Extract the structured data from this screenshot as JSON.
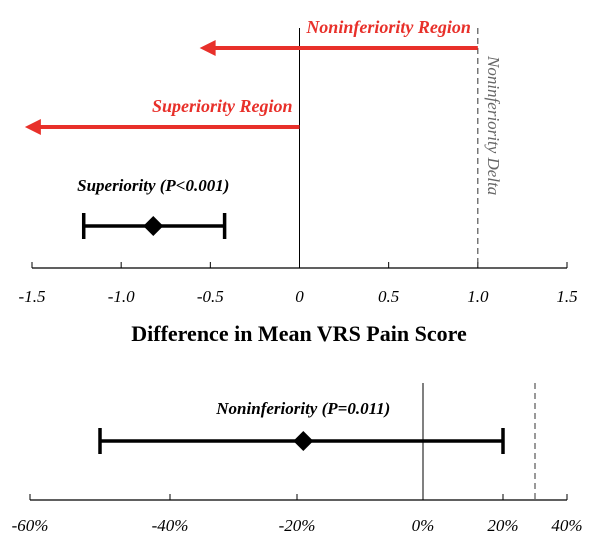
{
  "chart_data": [
    {
      "type": "errorbar",
      "xlabel": "Difference in Mean VRS Pain Score",
      "xlim": [
        -1.5,
        1.5
      ],
      "xticks": [
        {
          "value": -1.5,
          "label": "-1.5"
        },
        {
          "value": -1,
          "label": "-1.0"
        },
        {
          "value": -0.5,
          "label": "-0.5"
        },
        0,
        0.5,
        {
          "value": 1,
          "label": "1.0"
        },
        1.5
      ],
      "points": [
        {
          "label": "Superiority (P<0.001)",
          "value": -0.82,
          "lower": -1.21,
          "upper": -0.42
        }
      ],
      "reference_lines": [
        {
          "value": 0
        },
        {
          "value": 1,
          "label": "Noninferiority Delta",
          "dashed": true
        }
      ],
      "regions": [
        {
          "label": "Noninferiority Region",
          "from": 1,
          "to": -0.56,
          "color": "#e8302a"
        },
        {
          "label": "Superiority Region",
          "from": 0,
          "to": -1.54,
          "color": "#e8302a"
        }
      ]
    },
    {
      "type": "errorbar",
      "xlim": [
        -60,
        40
      ],
      "xticks": [
        {
          "value": -60,
          "label": "-60%"
        },
        {
          "value": -40,
          "label": "-40%"
        },
        {
          "value": -20,
          "label": "-20%"
        },
        {
          "value": 0,
          "label": "0%"
        },
        {
          "value": 20,
          "label": "20%"
        },
        {
          "value": 40,
          "label": "40%"
        }
      ],
      "points": [
        {
          "label": "Noninferiority (P=0.011)",
          "value": -19,
          "lower": -50,
          "upper": 20
        }
      ],
      "reference_lines": [
        {
          "value": 0
        },
        {
          "value": 30,
          "dashed": true
        }
      ]
    }
  ]
}
